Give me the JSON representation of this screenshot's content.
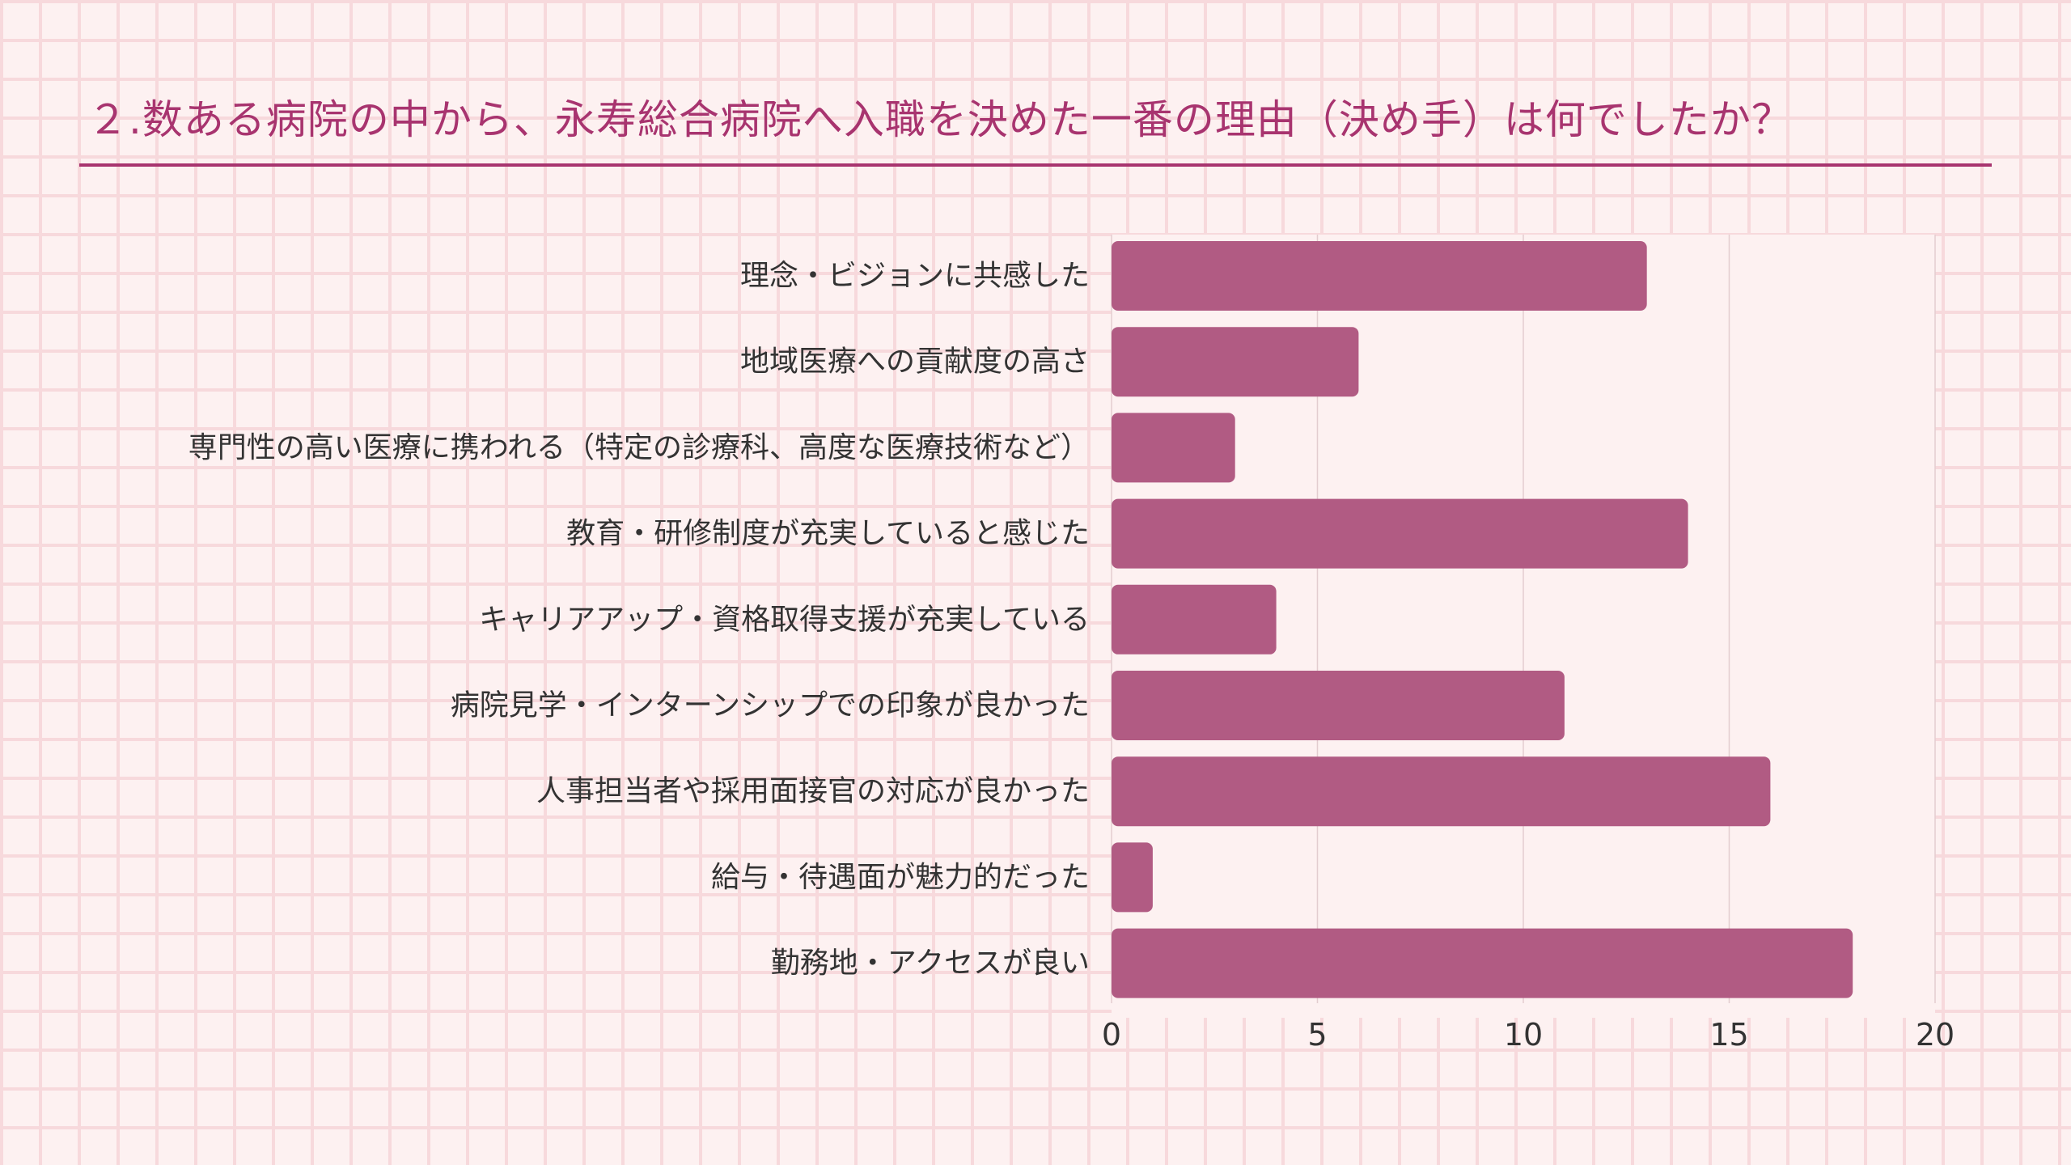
{
  "page": {
    "title": "２.数ある病院の中から、永寿総合病院へ入職を決めた一番の理由（決め手）は何でしたか？",
    "accent_color": "#a8346f"
  },
  "chart_data": {
    "type": "bar",
    "orientation": "horizontal",
    "title": "２.数ある病院の中から、永寿総合病院へ入職を決めた一番の理由（決め手）は何でしたか？",
    "categories": [
      "理念・ビジョンに共感した",
      "地域医療への貢献度の高さ",
      "専門性の高い医療に携われる（特定の診療科、高度な医療技術など）",
      "教育・研修制度が充実していると感じた",
      "キャリアアップ・資格取得支援が充実している",
      "病院見学・インターンシップでの印象が良かった",
      "人事担当者や採用面接官の対応が良かった",
      "給与・待遇面が魅力的だった",
      "勤務地・アクセスが良い"
    ],
    "values": [
      13,
      6,
      3,
      14,
      4,
      11,
      16,
      1,
      18
    ],
    "xlim": [
      0,
      20
    ],
    "xticks": [
      0,
      5,
      10,
      15,
      20
    ],
    "xlabel": "",
    "ylabel": "",
    "grid": true,
    "legend": "none",
    "bar_color": "#b15b83"
  }
}
